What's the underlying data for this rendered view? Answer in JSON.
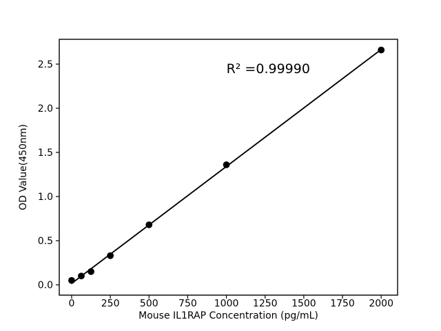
{
  "chart_data": {
    "type": "scatter",
    "title": "",
    "xlabel": "Mouse IL1RAP Concentration (pg/mL)",
    "ylabel": "OD Value(450nm)",
    "annotation": {
      "text": "R² =0.99990",
      "x": 1000,
      "y": 2.4
    },
    "x": [
      0,
      62.5,
      125,
      250,
      500,
      1000,
      2000
    ],
    "y": [
      0.05,
      0.1,
      0.15,
      0.33,
      0.68,
      1.36,
      2.66
    ],
    "fit_line": {
      "x": [
        0,
        2000
      ],
      "y": [
        0.016,
        2.666
      ]
    },
    "xticks": [
      "0",
      "250",
      "500",
      "750",
      "1000",
      "1250",
      "1500",
      "1750",
      "2000"
    ],
    "yticks": [
      "0.0",
      "0.5",
      "1.0",
      "1.5",
      "2.0",
      "2.5"
    ],
    "xlim": [
      -80,
      2106
    ],
    "ylim": [
      -0.117,
      2.781
    ],
    "grid": false,
    "legend": null,
    "marker": "circle",
    "colors": {
      "marker": "#000000",
      "line": "#000000",
      "axis": "#000000",
      "text": "#000000",
      "background": "#ffffff"
    }
  }
}
